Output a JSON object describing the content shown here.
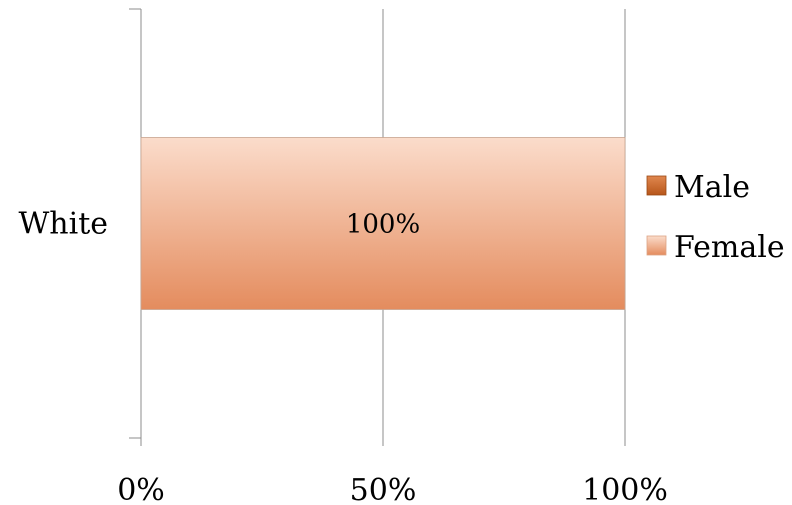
{
  "chart_data": {
    "type": "bar",
    "orientation": "horizontal",
    "stacked": "percent",
    "categories": [
      "White"
    ],
    "series": [
      {
        "name": "Male",
        "values": [
          0
        ],
        "color": "#c8621f"
      },
      {
        "name": "Female",
        "values": [
          100
        ],
        "color": "#f2b08a"
      }
    ],
    "data_labels": [
      "100%"
    ],
    "x_ticks": [
      "0%",
      "50%",
      "100%"
    ],
    "xlim": [
      0,
      100
    ],
    "grid": true,
    "legend_position": "right"
  }
}
